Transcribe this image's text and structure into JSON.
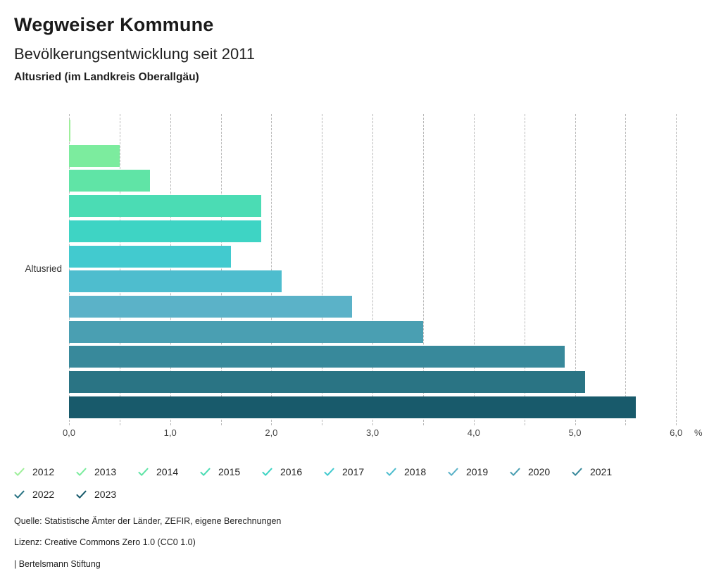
{
  "header": {
    "title": "Wegweiser Kommune",
    "subtitle": "Bevölkerungsentwicklung seit 2011",
    "region": "Altusried (im Landkreis Oberallgäu)"
  },
  "chart_data": {
    "type": "bar",
    "orientation": "horizontal",
    "title": "Bevölkerungsentwicklung seit 2011",
    "group_label": "Altusried",
    "unit": "%",
    "xlim": [
      0.0,
      6.0
    ],
    "grid_step": 0.5,
    "grid_on": true,
    "x_tick_labels": [
      "0,0",
      "1,0",
      "2,0",
      "3,0",
      "4,0",
      "5,0",
      "6,0"
    ],
    "legend_position": "bottom",
    "series": [
      {
        "year": "2012",
        "value": 0.0,
        "color": "#9fef9b"
      },
      {
        "year": "2013",
        "value": 0.5,
        "color": "#7cec9e"
      },
      {
        "year": "2014",
        "value": 0.8,
        "color": "#60e4a6"
      },
      {
        "year": "2015",
        "value": 1.9,
        "color": "#4bdcb4"
      },
      {
        "year": "2016",
        "value": 1.9,
        "color": "#3ed4c4"
      },
      {
        "year": "2017",
        "value": 1.6,
        "color": "#42cacf"
      },
      {
        "year": "2018",
        "value": 2.1,
        "color": "#4ebdce"
      },
      {
        "year": "2019",
        "value": 2.8,
        "color": "#5bb2c8"
      },
      {
        "year": "2020",
        "value": 3.5,
        "color": "#4a9fb2"
      },
      {
        "year": "2021",
        "value": 4.9,
        "color": "#38899b"
      },
      {
        "year": "2022",
        "value": 5.1,
        "color": "#2a7484"
      },
      {
        "year": "2023",
        "value": 5.6,
        "color": "#185a6b"
      }
    ]
  },
  "footer": {
    "source": "Quelle: Statistische Ämter der Länder, ZEFIR, eigene Berechnungen",
    "license": "Lizenz: Creative Commons Zero 1.0 (CC0 1.0)",
    "brand": "| Bertelsmann Stiftung"
  }
}
